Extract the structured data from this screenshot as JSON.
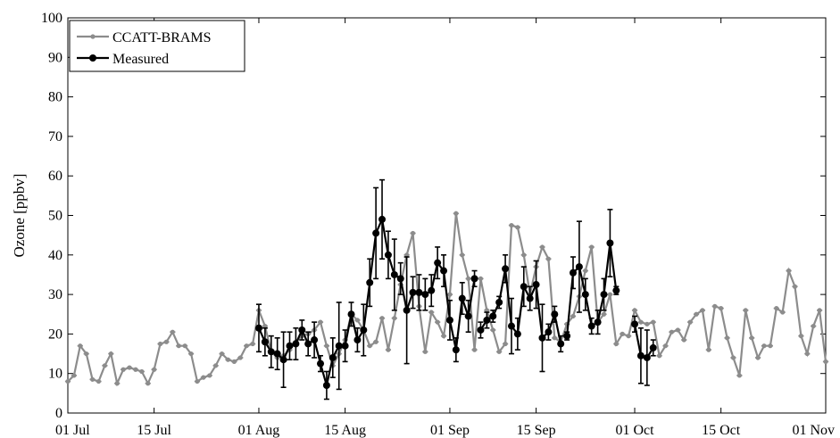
{
  "colors": {
    "model": "#8c8c8c",
    "measured": "#000000"
  },
  "chart_data": {
    "type": "line",
    "ylabel": "Ozone [ppbv]",
    "xlabel": "",
    "title": "",
    "ylim": [
      0,
      100
    ],
    "yticks": [
      0,
      10,
      20,
      30,
      40,
      50,
      60,
      70,
      80,
      90,
      100
    ],
    "xlim": [
      "2000-07-01",
      "2000-11-01"
    ],
    "xticks": [
      {
        "date": "2000-07-01",
        "label": "01 Jul"
      },
      {
        "date": "2000-07-15",
        "label": "15 Jul"
      },
      {
        "date": "2000-08-01",
        "label": "01 Aug"
      },
      {
        "date": "2000-08-15",
        "label": "15 Aug"
      },
      {
        "date": "2000-09-01",
        "label": "01 Sep"
      },
      {
        "date": "2000-09-15",
        "label": "15 Sep"
      },
      {
        "date": "2000-10-01",
        "label": "01 Oct"
      },
      {
        "date": "2000-10-15",
        "label": "15 Oct"
      },
      {
        "date": "2000-11-01",
        "label": "01 Nov"
      }
    ],
    "legend": {
      "position": "top-left",
      "entries": [
        "CCATT-BRAMS",
        "Measured"
      ]
    },
    "series": [
      {
        "name": "CCATT-BRAMS",
        "color": "#8c8c8c",
        "error_bar_style": "horizontal caps",
        "points": [
          {
            "x": "2000-07-01",
            "y": 8
          },
          {
            "x": "2000-07-02",
            "y": 9.5
          },
          {
            "x": "2000-07-03",
            "y": 17
          },
          {
            "x": "2000-07-04",
            "y": 15
          },
          {
            "x": "2000-07-05",
            "y": 8.5
          },
          {
            "x": "2000-07-06",
            "y": 8
          },
          {
            "x": "2000-07-07",
            "y": 12
          },
          {
            "x": "2000-07-08",
            "y": 15
          },
          {
            "x": "2000-07-09",
            "y": 7.5
          },
          {
            "x": "2000-07-10",
            "y": 11
          },
          {
            "x": "2000-07-11",
            "y": 11.5
          },
          {
            "x": "2000-07-12",
            "y": 11
          },
          {
            "x": "2000-07-13",
            "y": 10.5
          },
          {
            "x": "2000-07-14",
            "y": 7.5
          },
          {
            "x": "2000-07-15",
            "y": 11
          },
          {
            "x": "2000-07-16",
            "y": 17.5
          },
          {
            "x": "2000-07-17",
            "y": 18
          },
          {
            "x": "2000-07-18",
            "y": 20.5
          },
          {
            "x": "2000-07-19",
            "y": 17
          },
          {
            "x": "2000-07-20",
            "y": 17
          },
          {
            "x": "2000-07-21",
            "y": 15
          },
          {
            "x": "2000-07-22",
            "y": 8
          },
          {
            "x": "2000-07-23",
            "y": 9
          },
          {
            "x": "2000-07-24",
            "y": 9.5
          },
          {
            "x": "2000-07-25",
            "y": 12
          },
          {
            "x": "2000-07-26",
            "y": 15
          },
          {
            "x": "2000-07-27",
            "y": 13.5
          },
          {
            "x": "2000-07-28",
            "y": 13
          },
          {
            "x": "2000-07-29",
            "y": 14
          },
          {
            "x": "2000-07-30",
            "y": 17
          },
          {
            "x": "2000-07-31",
            "y": 17.5
          },
          {
            "x": "2000-08-01",
            "y": 26
          },
          {
            "x": "2000-08-02",
            "y": 22
          },
          {
            "x": "2000-08-03",
            "y": 15.5
          },
          {
            "x": "2000-08-04",
            "y": 14
          },
          {
            "x": "2000-08-05",
            "y": 14.5
          },
          {
            "x": "2000-08-06",
            "y": 16
          },
          {
            "x": "2000-08-07",
            "y": 18
          },
          {
            "x": "2000-08-08",
            "y": 19.5
          },
          {
            "x": "2000-08-09",
            "y": 20
          },
          {
            "x": "2000-08-10",
            "y": 21
          },
          {
            "x": "2000-08-11",
            "y": 23
          },
          {
            "x": "2000-08-12",
            "y": 17
          },
          {
            "x": "2000-08-13",
            "y": 12
          },
          {
            "x": "2000-08-14",
            "y": 15
          },
          {
            "x": "2000-08-15",
            "y": 18.5
          },
          {
            "x": "2000-08-16",
            "y": 25
          },
          {
            "x": "2000-08-17",
            "y": 23.5
          },
          {
            "x": "2000-08-18",
            "y": 21
          },
          {
            "x": "2000-08-19",
            "y": 17
          },
          {
            "x": "2000-08-20",
            "y": 18
          },
          {
            "x": "2000-08-21",
            "y": 24
          },
          {
            "x": "2000-08-22",
            "y": 16
          },
          {
            "x": "2000-08-23",
            "y": 24
          },
          {
            "x": "2000-08-24",
            "y": 32.5
          },
          {
            "x": "2000-08-25",
            "y": 40
          },
          {
            "x": "2000-08-26",
            "y": 45.5
          },
          {
            "x": "2000-08-27",
            "y": 27
          },
          {
            "x": "2000-08-28",
            "y": 15.5
          },
          {
            "x": "2000-08-29",
            "y": 25.5
          },
          {
            "x": "2000-08-30",
            "y": 23
          },
          {
            "x": "2000-08-31",
            "y": 19.5
          },
          {
            "x": "2000-09-01",
            "y": 30
          },
          {
            "x": "2000-09-02",
            "y": 50.5
          },
          {
            "x": "2000-09-03",
            "y": 40
          },
          {
            "x": "2000-09-04",
            "y": 34
          },
          {
            "x": "2000-09-05",
            "y": 16
          },
          {
            "x": "2000-09-06",
            "y": 34
          },
          {
            "x": "2000-09-07",
            "y": 26
          },
          {
            "x": "2000-09-08",
            "y": 21
          },
          {
            "x": "2000-09-09",
            "y": 15.5
          },
          {
            "x": "2000-09-10",
            "y": 17.5
          },
          {
            "x": "2000-09-11",
            "y": 47.5
          },
          {
            "x": "2000-09-12",
            "y": 47
          },
          {
            "x": "2000-09-13",
            "y": 40
          },
          {
            "x": "2000-09-14",
            "y": 30
          },
          {
            "x": "2000-09-15",
            "y": 37
          },
          {
            "x": "2000-09-16",
            "y": 42
          },
          {
            "x": "2000-09-17",
            "y": 39
          },
          {
            "x": "2000-09-18",
            "y": 19
          },
          {
            "x": "2000-09-19",
            "y": 18
          },
          {
            "x": "2000-09-20",
            "y": 22.5
          },
          {
            "x": "2000-09-21",
            "y": 24.5
          },
          {
            "x": "2000-09-22",
            "y": 29.5
          },
          {
            "x": "2000-09-23",
            "y": 36
          },
          {
            "x": "2000-09-24",
            "y": 42
          },
          {
            "x": "2000-09-25",
            "y": 23
          },
          {
            "x": "2000-09-26",
            "y": 25
          },
          {
            "x": "2000-09-27",
            "y": 30
          },
          {
            "x": "2000-09-28",
            "y": 17.5
          },
          {
            "x": "2000-09-29",
            "y": 20
          },
          {
            "x": "2000-09-30",
            "y": 19.5
          },
          {
            "x": "2000-10-01",
            "y": 26
          },
          {
            "x": "2000-10-02",
            "y": 23
          },
          {
            "x": "2000-10-03",
            "y": 22.5
          },
          {
            "x": "2000-10-04",
            "y": 23
          },
          {
            "x": "2000-10-05",
            "y": 14.5
          },
          {
            "x": "2000-10-06",
            "y": 17
          },
          {
            "x": "2000-10-07",
            "y": 20.5
          },
          {
            "x": "2000-10-08",
            "y": 21
          },
          {
            "x": "2000-10-09",
            "y": 18.5
          },
          {
            "x": "2000-10-10",
            "y": 23
          },
          {
            "x": "2000-10-11",
            "y": 25
          },
          {
            "x": "2000-10-12",
            "y": 26
          },
          {
            "x": "2000-10-13",
            "y": 16
          },
          {
            "x": "2000-10-14",
            "y": 27
          },
          {
            "x": "2000-10-15",
            "y": 26.5
          },
          {
            "x": "2000-10-16",
            "y": 19
          },
          {
            "x": "2000-10-17",
            "y": 14
          },
          {
            "x": "2000-10-18",
            "y": 9.5
          },
          {
            "x": "2000-10-19",
            "y": 26
          },
          {
            "x": "2000-10-20",
            "y": 19
          },
          {
            "x": "2000-10-21",
            "y": 14
          },
          {
            "x": "2000-10-22",
            "y": 17
          },
          {
            "x": "2000-10-23",
            "y": 17
          },
          {
            "x": "2000-10-24",
            "y": 26.5
          },
          {
            "x": "2000-10-25",
            "y": 25.5
          },
          {
            "x": "2000-10-26",
            "y": 36
          },
          {
            "x": "2000-10-27",
            "y": 32
          },
          {
            "x": "2000-10-28",
            "y": 19.5
          },
          {
            "x": "2000-10-29",
            "y": 15
          },
          {
            "x": "2000-10-30",
            "y": 22
          },
          {
            "x": "2000-10-31",
            "y": 26
          },
          {
            "x": "2000-11-01",
            "y": 13
          }
        ]
      },
      {
        "name": "Measured",
        "color": "#000000",
        "error_bar_style": "vertical",
        "segments": [
          [
            {
              "x": "2000-08-01",
              "y": 21.5,
              "err": 6
            },
            {
              "x": "2000-08-02",
              "y": 18,
              "err": 3.5
            },
            {
              "x": "2000-08-03",
              "y": 15.5,
              "err": 4
            },
            {
              "x": "2000-08-04",
              "y": 15,
              "err": 4
            },
            {
              "x": "2000-08-05",
              "y": 13.5,
              "err": 7
            },
            {
              "x": "2000-08-06",
              "y": 17,
              "err": 3.5
            },
            {
              "x": "2000-08-07",
              "y": 17.5,
              "err": 4
            },
            {
              "x": "2000-08-08",
              "y": 21,
              "err": 2.5
            },
            {
              "x": "2000-08-09",
              "y": 17.5,
              "err": 3
            },
            {
              "x": "2000-08-10",
              "y": 18.5,
              "err": 4.5
            },
            {
              "x": "2000-08-11",
              "y": 12.5,
              "err": 2
            },
            {
              "x": "2000-08-12",
              "y": 7,
              "err": 3.5
            },
            {
              "x": "2000-08-13",
              "y": 14,
              "err": 5
            },
            {
              "x": "2000-08-14",
              "y": 17,
              "err": 11
            },
            {
              "x": "2000-08-15",
              "y": 17,
              "err": 4
            },
            {
              "x": "2000-08-16",
              "y": 25,
              "err": 3
            },
            {
              "x": "2000-08-17",
              "y": 18.5,
              "err": 3
            },
            {
              "x": "2000-08-18",
              "y": 21,
              "err": 6.5
            },
            {
              "x": "2000-08-19",
              "y": 33,
              "err": 6
            },
            {
              "x": "2000-08-20",
              "y": 45.5,
              "err": 11.5
            },
            {
              "x": "2000-08-21",
              "y": 49,
              "err": 10
            },
            {
              "x": "2000-08-22",
              "y": 40,
              "err": 6
            },
            {
              "x": "2000-08-23",
              "y": 35,
              "err": 9
            },
            {
              "x": "2000-08-24",
              "y": 34,
              "err": 4
            },
            {
              "x": "2000-08-25",
              "y": 26,
              "err": 13.5
            },
            {
              "x": "2000-08-26",
              "y": 30.5,
              "err": 4
            },
            {
              "x": "2000-08-27",
              "y": 30.5,
              "err": 4.5
            },
            {
              "x": "2000-08-28",
              "y": 30,
              "err": 4
            },
            {
              "x": "2000-08-29",
              "y": 31,
              "err": 4
            },
            {
              "x": "2000-08-30",
              "y": 38,
              "err": 4
            },
            {
              "x": "2000-08-31",
              "y": 36,
              "err": 4
            },
            {
              "x": "2000-09-01",
              "y": 23.5,
              "err": 5
            },
            {
              "x": "2000-09-02",
              "y": 16,
              "err": 3
            },
            {
              "x": "2000-09-03",
              "y": 29,
              "err": 4
            },
            {
              "x": "2000-09-04",
              "y": 24.5,
              "err": 4
            },
            {
              "x": "2000-09-05",
              "y": 34,
              "err": 2
            }
          ],
          [
            {
              "x": "2000-09-06",
              "y": 21,
              "err": 2
            },
            {
              "x": "2000-09-07",
              "y": 23.5,
              "err": 2
            },
            {
              "x": "2000-09-08",
              "y": 24.5,
              "err": 1.5
            },
            {
              "x": "2000-09-09",
              "y": 28,
              "err": 1.5
            },
            {
              "x": "2000-09-10",
              "y": 36.5,
              "err": 3.5
            },
            {
              "x": "2000-09-11",
              "y": 22,
              "err": 7
            },
            {
              "x": "2000-09-12",
              "y": 20,
              "err": 4
            },
            {
              "x": "2000-09-13",
              "y": 32,
              "err": 5
            },
            {
              "x": "2000-09-14",
              "y": 29,
              "err": 3
            },
            {
              "x": "2000-09-15",
              "y": 32.5,
              "err": 6
            },
            {
              "x": "2000-09-16",
              "y": 19,
              "err": 8.5
            },
            {
              "x": "2000-09-17",
              "y": 20.5,
              "err": 2
            },
            {
              "x": "2000-09-18",
              "y": 25,
              "err": 2
            },
            {
              "x": "2000-09-19",
              "y": 17.5,
              "err": 2
            }
          ],
          [
            {
              "x": "2000-09-20",
              "y": 19.5,
              "err": 1
            },
            {
              "x": "2000-09-21",
              "y": 35.5,
              "err": 4
            },
            {
              "x": "2000-09-22",
              "y": 37,
              "err": 11.5
            },
            {
              "x": "2000-09-23",
              "y": 30,
              "err": 4
            },
            {
              "x": "2000-09-24",
              "y": 22,
              "err": 2
            },
            {
              "x": "2000-09-25",
              "y": 23,
              "err": 3
            },
            {
              "x": "2000-09-26",
              "y": 30,
              "err": 4
            },
            {
              "x": "2000-09-27",
              "y": 43,
              "err": 8.5
            },
            {
              "x": "2000-09-28",
              "y": 31,
              "err": 1
            }
          ],
          [
            {
              "x": "2000-10-01",
              "y": 22.5,
              "err": 2
            },
            {
              "x": "2000-10-02",
              "y": 14.5,
              "err": 7
            },
            {
              "x": "2000-10-03",
              "y": 14,
              "err": 7
            },
            {
              "x": "2000-10-04",
              "y": 16.5,
              "err": 2
            }
          ]
        ]
      }
    ]
  }
}
